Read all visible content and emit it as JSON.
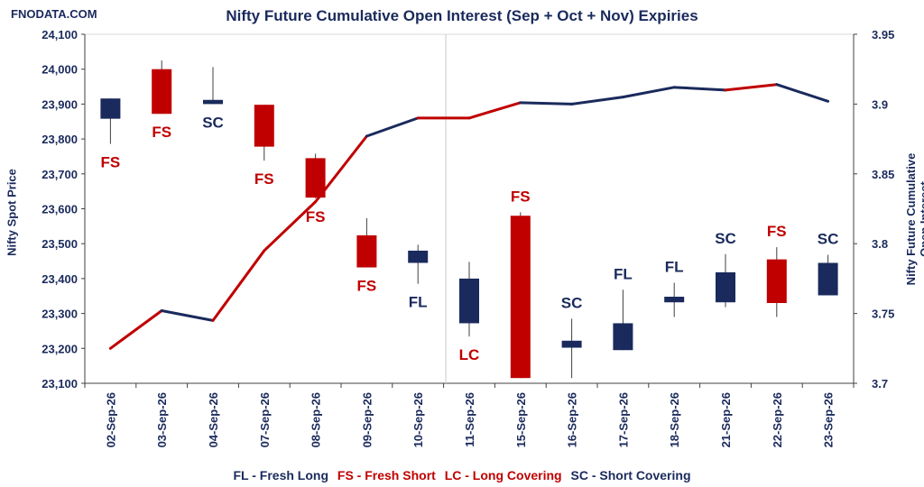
{
  "watermark": "FNODATA.COM",
  "chart_data": {
    "type": "candlestick+line",
    "title": "Nifty Future Cumulative Open Interest (Sep + Oct + Nov) Expiries",
    "ylabel_left": "Nifty Spot Price",
    "ylabel_right": "Nifty Future Cumulative Open Interest",
    "ylim_left": [
      23100,
      24100
    ],
    "yticks_left": [
      "23,100",
      "23,200",
      "23,300",
      "23,400",
      "23,500",
      "23,600",
      "23,700",
      "23,800",
      "23,900",
      "24,000",
      "24,100"
    ],
    "ylim_right": [
      3.7,
      3.95
    ],
    "yticks_right": [
      "3.7",
      "3.75",
      "3.8",
      "3.85",
      "3.9",
      "3.95"
    ],
    "grid": false,
    "colors": {
      "up": "#1a2a5c",
      "down": "#c00000",
      "text": "#1a2a5c"
    },
    "categories": [
      "02-Sep-26",
      "03-Sep-26",
      "04-Sep-26",
      "07-Sep-26",
      "08-Sep-26",
      "09-Sep-26",
      "10-Sep-26",
      "11-Sep-26",
      "15-Sep-26",
      "16-Sep-26",
      "17-Sep-26",
      "18-Sep-26",
      "21-Sep-26",
      "22-Sep-26",
      "23-Sep-26"
    ],
    "candles": [
      {
        "open": 23858,
        "high": 23916,
        "low": 23786,
        "close": 23916,
        "label": "FS",
        "label_pos": "below"
      },
      {
        "open": 24000,
        "high": 24025,
        "low": 23872,
        "close": 23872,
        "label": "FS",
        "label_pos": "below"
      },
      {
        "open": 23900,
        "high": 24006,
        "low": 23900,
        "close": 23912,
        "label": "SC",
        "label_pos": "below"
      },
      {
        "open": 23898,
        "high": 23898,
        "low": 23738,
        "close": 23778,
        "label": "FS",
        "label_pos": "below"
      },
      {
        "open": 23745,
        "high": 23758,
        "low": 23630,
        "close": 23632,
        "label": "FS",
        "label_pos": "below"
      },
      {
        "open": 23524,
        "high": 23573,
        "low": 23432,
        "close": 23432,
        "label": "FS",
        "label_pos": "below"
      },
      {
        "open": 23445,
        "high": 23497,
        "low": 23385,
        "close": 23480,
        "label": "FL",
        "label_pos": "below"
      },
      {
        "open": 23272,
        "high": 23448,
        "low": 23234,
        "close": 23400,
        "label": "LC",
        "label_pos": "below"
      },
      {
        "open": 23580,
        "high": 23590,
        "low": 23115,
        "close": 23115,
        "label": "FS",
        "label_pos": "above"
      },
      {
        "open": 23202,
        "high": 23285,
        "low": 23115,
        "close": 23222,
        "label": "SC",
        "label_pos": "above"
      },
      {
        "open": 23195,
        "high": 23368,
        "low": 23195,
        "close": 23272,
        "label": "FL",
        "label_pos": "above"
      },
      {
        "open": 23332,
        "high": 23388,
        "low": 23290,
        "close": 23348,
        "label": "FL",
        "label_pos": "above"
      },
      {
        "open": 23332,
        "high": 23470,
        "low": 23318,
        "close": 23418,
        "label": "SC",
        "label_pos": "above"
      },
      {
        "open": 23455,
        "high": 23490,
        "low": 23290,
        "close": 23330,
        "label": "FS",
        "label_pos": "above"
      },
      {
        "open": 23352,
        "high": 23468,
        "low": 23352,
        "close": 23445,
        "label": "SC",
        "label_pos": "above"
      }
    ],
    "open_interest": {
      "values": [
        3.725,
        3.752,
        3.745,
        3.795,
        3.83,
        3.877,
        3.89,
        3.89,
        3.901,
        3.9,
        3.905,
        3.912,
        3.91,
        3.914,
        3.902
      ],
      "segment_colors": [
        "#c00000",
        "#1a2a5c",
        "#c00000",
        "#c00000",
        "#c00000",
        "#1a2a5c",
        "#c00000",
        "#c00000",
        "#1a2a5c",
        "#1a2a5c",
        "#1a2a5c",
        "#1a2a5c",
        "#c00000",
        "#1a2a5c"
      ]
    },
    "legend": [
      {
        "text": "FL - Fresh Long",
        "color": "#1a2a5c"
      },
      {
        "text": "FS - Fresh Short",
        "color": "#c00000"
      },
      {
        "text": "LC - Long Covering",
        "color": "#c00000"
      },
      {
        "text": "SC - Short Covering",
        "color": "#1a2a5c"
      }
    ]
  }
}
